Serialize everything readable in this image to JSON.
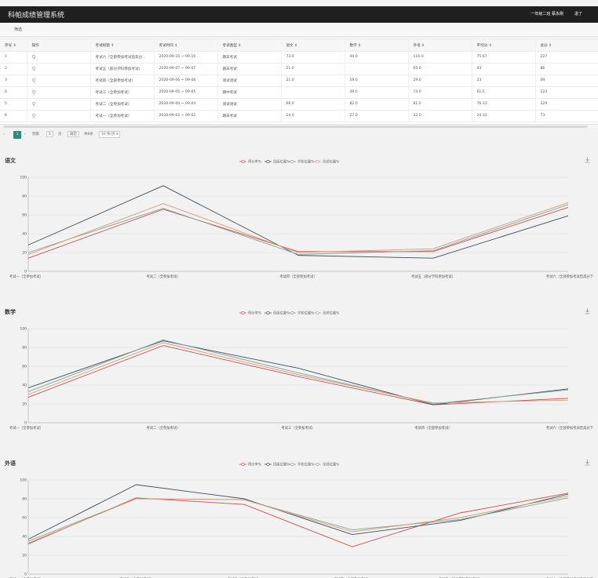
{
  "header": {
    "title": "科帕成绩管理系统",
    "user": "一年级二班 蔡永刚",
    "logout": "退了"
  },
  "filter": {
    "label": "筛选"
  },
  "table": {
    "columns": [
      "序号 ⇕",
      "操作",
      "考试标题 ⇕",
      "考试时间 ⇕",
      "考试类型 ⇕",
      "语文 ⇕",
      "数学 ⇕",
      "外语 ⇕",
      "平均分 ⇕",
      "总分 ⇕"
    ],
    "rows": [
      [
        "1",
        "",
        "考试六（全部参加考试后高分...",
        "2020-09-10 ~ 09-10",
        "期末考试",
        "73.0",
        "44.0",
        "110.0",
        "75.67",
        "227"
      ],
      [
        "2",
        "",
        "考试五（部分学科参加考试）",
        "2020-09-07 ~ 09-07",
        "期末考试",
        "21.0",
        "",
        "65.0",
        "43",
        "86"
      ],
      [
        "3",
        "",
        "考试四（全部参加考试）",
        "2020-09-06 ~ 09-06",
        "测试测试",
        "21.0",
        "19.0",
        "29.0",
        "23",
        "69"
      ],
      [
        "4",
        "",
        "考试三（全参加考试）",
        "2020-09-05 ~ 09-05",
        "期中考试",
        "",
        "49.0",
        "74.0",
        "61.5",
        "123"
      ],
      [
        "5",
        "",
        "考试二（全参加考试）",
        "2020-09-04 ~ 09-04",
        "测试测试",
        "66.0",
        "82.0",
        "81.0",
        "76.33",
        "229"
      ],
      [
        "6",
        "",
        "考试一（全参加考试）",
        "2020-09-02 ~ 09-02",
        "期末考试",
        "14.0",
        "27.0",
        "32.0",
        "24.33",
        "73"
      ]
    ]
  },
  "pager": {
    "current": "1",
    "goto": "到第",
    "goto_value": "1",
    "page_unit": "页",
    "confirm": "确定",
    "total": "共6条",
    "page_size": "10 条/页 ▾"
  },
  "legend": [
    "得分率%",
    "班级位置%",
    "学校位置%",
    "全部位置%"
  ],
  "colors": {
    "score": "#c8504a",
    "class": "#3e4f5c",
    "school": "#7fa39a",
    "all": "#d79a77",
    "accent": "#2a8a7b"
  },
  "chart_data": [
    {
      "type": "line",
      "title": "语文",
      "categories": [
        "考试一（全参加考试）",
        "考试二（全参加考试）",
        "考试四（全部参加考试）",
        "考试五（部分学科参加考试）",
        "考试六（全部参加考试后高分下"
      ],
      "ylim": [
        0,
        100
      ],
      "yticks": [
        0,
        20,
        40,
        60,
        80,
        100
      ],
      "series": [
        {
          "name": "得分率%",
          "values": [
            14,
            66,
            21,
            21,
            68
          ]
        },
        {
          "name": "班级位置%",
          "values": [
            28,
            91,
            17,
            14,
            59
          ]
        },
        {
          "name": "学校位置%",
          "values": [
            20,
            67,
            18,
            22,
            71
          ]
        },
        {
          "name": "全部位置%",
          "values": [
            18,
            72,
            20,
            24,
            73
          ]
        }
      ]
    },
    {
      "type": "line",
      "title": "数学",
      "categories": [
        "考试一（全参加考试）",
        "考试二（全参加考试）",
        "考试三（全参加考试）",
        "考试四（全部参加考试）",
        "考试六（全部参加考试后高分下"
      ],
      "ylim": [
        0,
        100
      ],
      "yticks": [
        0,
        20,
        40,
        60,
        80,
        100
      ],
      "series": [
        {
          "name": "得分率%",
          "values": [
            27,
            82,
            49,
            19,
            26
          ]
        },
        {
          "name": "班级位置%",
          "values": [
            37,
            87,
            58,
            19,
            36
          ]
        },
        {
          "name": "学校位置%",
          "values": [
            33,
            88,
            53,
            20,
            35
          ]
        },
        {
          "name": "全部位置%",
          "values": [
            30,
            85,
            51,
            21,
            24
          ]
        }
      ]
    },
    {
      "type": "line",
      "title": "外语",
      "categories": [
        "考试一（全参加考试）",
        "考试二（全参加考试）",
        "考试三（全参加考试）",
        "考试四（全部参加考试）",
        "考试五（部分学科参加考试）",
        "考试六（全部参加考试后高分下"
      ],
      "ylim": [
        0,
        100
      ],
      "yticks": [
        0,
        20,
        40,
        60,
        80,
        100
      ],
      "series": [
        {
          "name": "得分率%",
          "values": [
            32,
            81,
            74,
            29,
            65,
            86
          ]
        },
        {
          "name": "班级位置%",
          "values": [
            37,
            95,
            80,
            42,
            57,
            85
          ]
        },
        {
          "name": "学校位置%",
          "values": [
            35,
            80,
            79,
            47,
            58,
            81
          ]
        },
        {
          "name": "全部位置%",
          "values": [
            33,
            80,
            79,
            45,
            60,
            83
          ]
        }
      ]
    }
  ]
}
